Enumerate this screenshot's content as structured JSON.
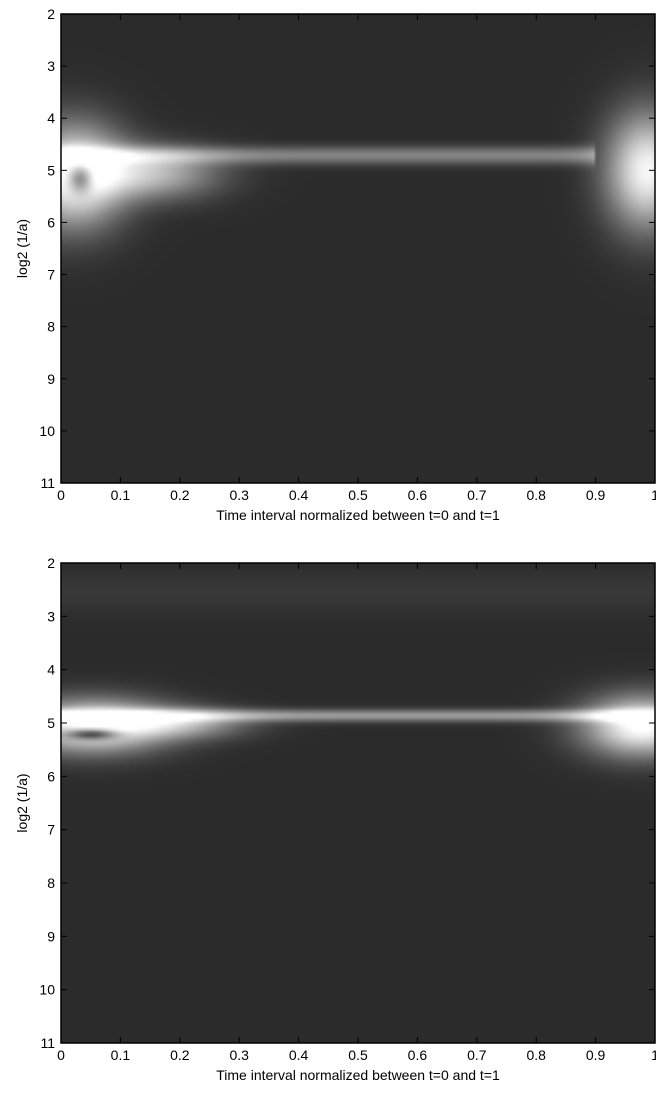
{
  "chart_data": [
    {
      "type": "heatmap",
      "xlabel": "Time interval normalized between t=0 and t=1",
      "ylabel": "log2 (1/a)",
      "xlim": [
        0,
        1
      ],
      "ylim": [
        2,
        11
      ],
      "y_inverted": true,
      "x_ticks": [
        0,
        0.1,
        0.2,
        0.3,
        0.4,
        0.5,
        0.6,
        0.7,
        0.8,
        0.9,
        1
      ],
      "x_tick_labels": [
        "0",
        "0.1",
        "0.2",
        "0.3",
        "0.4",
        "0.5",
        "0.6",
        "0.7",
        "0.8",
        "0.9",
        "1"
      ],
      "y_ticks": [
        2,
        3,
        4,
        5,
        6,
        7,
        8,
        9,
        10,
        11
      ],
      "y_tick_labels": [
        "2",
        "3",
        "4",
        "5",
        "6",
        "7",
        "8",
        "9",
        "10",
        "11"
      ],
      "colormap": "gray",
      "background_color": "#2b2b2b",
      "features": [
        {
          "kind": "blob",
          "x": 0.02,
          "y": 5.1,
          "sx": 0.06,
          "sy": 0.7,
          "level": 0.85
        },
        {
          "kind": "blob",
          "x": 0.15,
          "y": 5.05,
          "sx": 0.08,
          "sy": 0.35,
          "level": 0.55
        },
        {
          "kind": "blob",
          "x": 0.99,
          "y": 5.0,
          "sx": 0.05,
          "sy": 0.8,
          "level": 0.8
        },
        {
          "kind": "band",
          "x_from": 0.0,
          "x_to": 0.9,
          "y": 4.7,
          "sy": 0.12,
          "level": 0.35
        },
        {
          "kind": "blob",
          "x": 0.03,
          "y": 5.15,
          "sx": 0.015,
          "sy": 0.2,
          "level": -0.6
        }
      ]
    },
    {
      "type": "heatmap",
      "xlabel": "Time interval normalized between t=0 and t=1",
      "ylabel": "log2 (1/a)",
      "xlim": [
        0,
        1
      ],
      "ylim": [
        2,
        11
      ],
      "y_inverted": true,
      "x_ticks": [
        0,
        0.1,
        0.2,
        0.3,
        0.4,
        0.5,
        0.6,
        0.7,
        0.8,
        0.9,
        1
      ],
      "x_tick_labels": [
        "0",
        "0.1",
        "0.2",
        "0.3",
        "0.4",
        "0.5",
        "0.6",
        "0.7",
        "0.8",
        "0.9",
        "1"
      ],
      "y_ticks": [
        2,
        3,
        4,
        5,
        6,
        7,
        8,
        9,
        10,
        11
      ],
      "y_tick_labels": [
        "2",
        "3",
        "4",
        "5",
        "6",
        "7",
        "8",
        "9",
        "10",
        "11"
      ],
      "colormap": "gray",
      "background_color": "#2b2b2b",
      "features": [
        {
          "kind": "blob",
          "x": 0.05,
          "y": 5.05,
          "sx": 0.09,
          "sy": 0.35,
          "level": 0.85
        },
        {
          "kind": "blob",
          "x": 0.2,
          "y": 5.0,
          "sx": 0.08,
          "sy": 0.2,
          "level": 0.45
        },
        {
          "kind": "blob",
          "x": 0.98,
          "y": 5.05,
          "sx": 0.07,
          "sy": 0.4,
          "level": 0.85
        },
        {
          "kind": "band",
          "x_from": 0.0,
          "x_to": 1.0,
          "y": 4.85,
          "sy": 0.08,
          "level": 0.45
        },
        {
          "kind": "band",
          "x_from": 0.0,
          "x_to": 1.0,
          "y": 2.5,
          "sy": 0.3,
          "level": 0.05
        },
        {
          "kind": "blob",
          "x": 0.05,
          "y": 5.2,
          "sx": 0.03,
          "sy": 0.07,
          "level": -0.7
        }
      ]
    }
  ]
}
